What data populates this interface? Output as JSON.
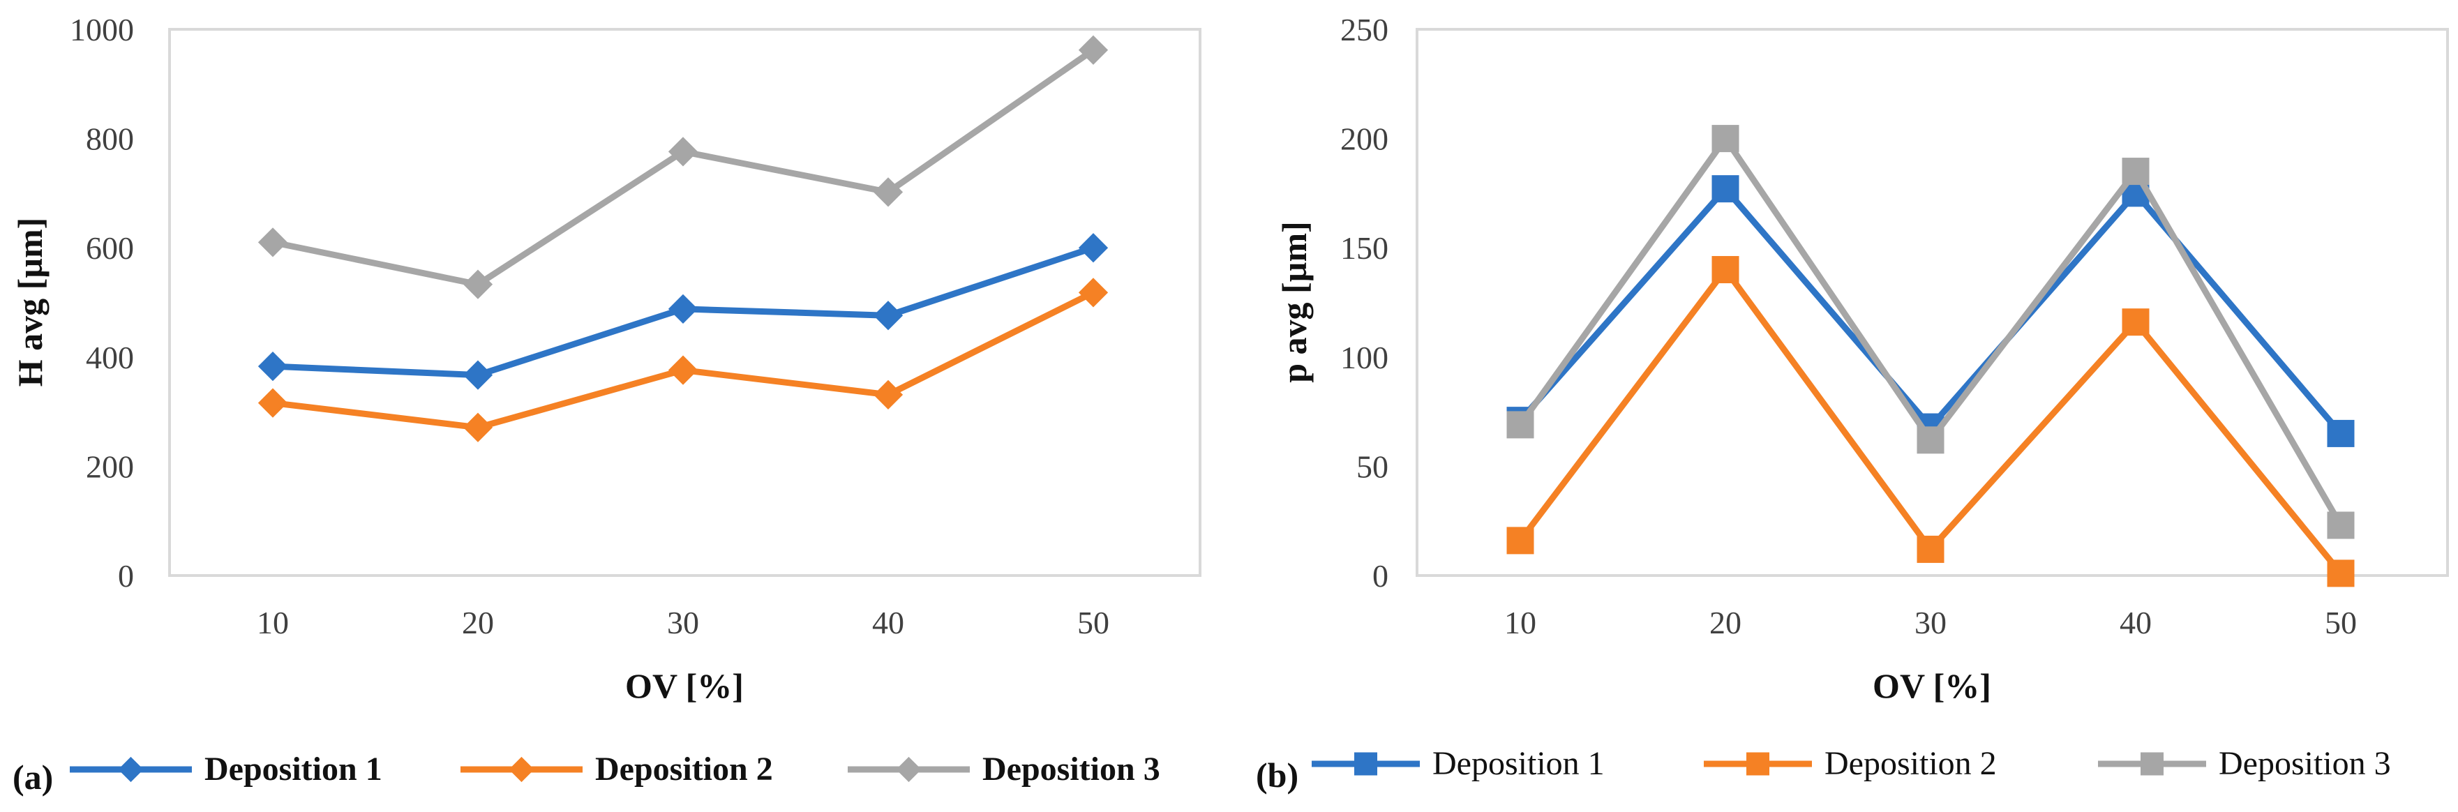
{
  "colors": {
    "series1": "#2E75C6",
    "series2": "#F58124",
    "series3": "#A6A6A6",
    "frame": "#D9D9D9"
  },
  "chart_data": [
    {
      "panel": "(a)",
      "type": "line",
      "marker": "diamond",
      "legend_style": "bold",
      "categories": [
        "10",
        "20",
        "30",
        "40",
        "50"
      ],
      "xlabel": "OV [%]",
      "ylabel": "H avg [µm]",
      "ylim": [
        0,
        1000
      ],
      "yticks": [
        "0",
        "200",
        "400",
        "600",
        "800",
        "1000"
      ],
      "series": [
        {
          "name": "Deposition 1",
          "values": [
            383,
            367,
            488,
            476,
            600
          ]
        },
        {
          "name": "Deposition 2",
          "values": [
            316,
            271,
            376,
            331,
            518
          ]
        },
        {
          "name": "Deposition 3",
          "values": [
            610,
            533,
            776,
            702,
            962
          ]
        }
      ]
    },
    {
      "panel": "(b)",
      "type": "line",
      "marker": "square",
      "legend_style": "normal",
      "categories": [
        "10",
        "20",
        "30",
        "40",
        "50"
      ],
      "xlabel": "OV [%]",
      "ylabel": "p avg [µm]",
      "ylim": [
        0,
        250
      ],
      "yticks": [
        "0",
        "50",
        "100",
        "150",
        "200",
        "250"
      ],
      "series": [
        {
          "name": "Deposition 1",
          "values": [
            71,
            177,
            68,
            175,
            65
          ]
        },
        {
          "name": "Deposition 2",
          "values": [
            16,
            140,
            12,
            116,
            1
          ]
        },
        {
          "name": "Deposition 3",
          "values": [
            69,
            200,
            62,
            185,
            23
          ]
        }
      ]
    }
  ]
}
